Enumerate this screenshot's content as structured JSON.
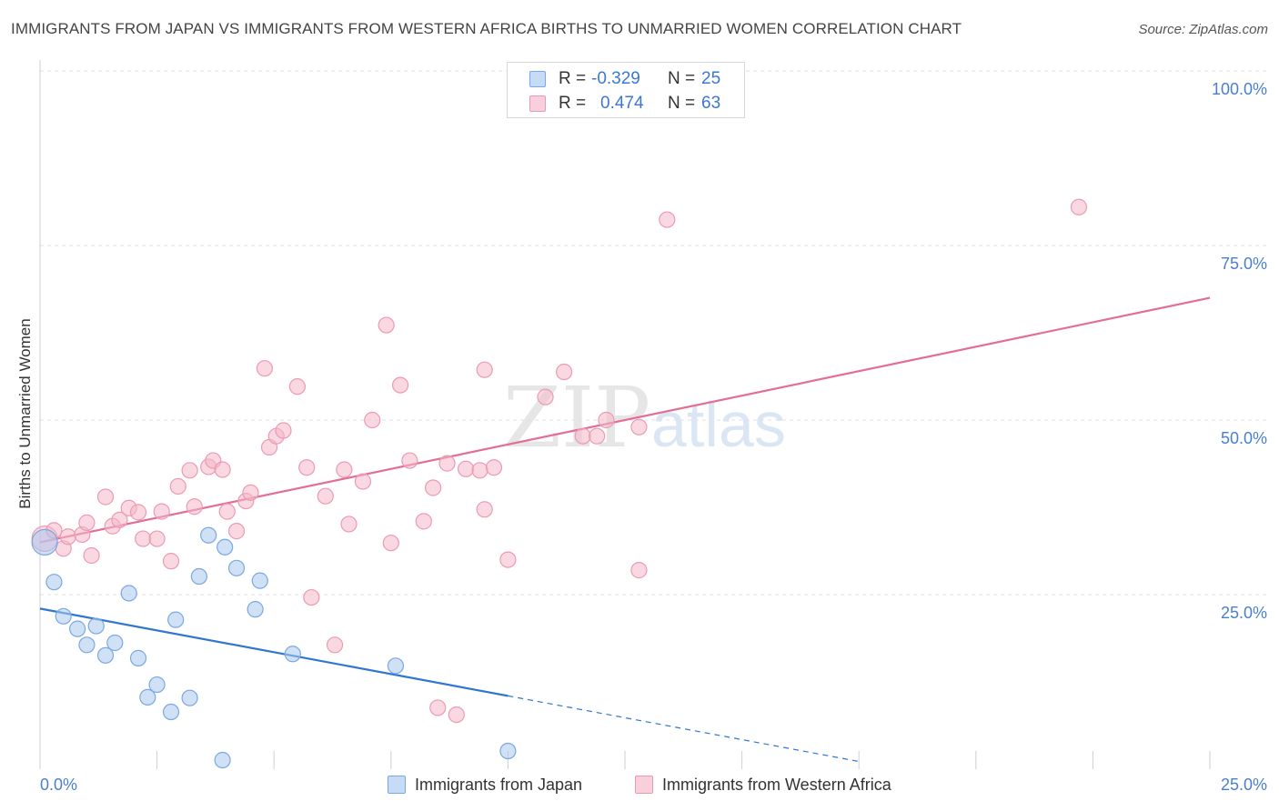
{
  "title": "IMMIGRANTS FROM JAPAN VS IMMIGRANTS FROM WESTERN AFRICA BIRTHS TO UNMARRIED WOMEN CORRELATION CHART",
  "source": "Source: ZipAtlas.com",
  "watermark": {
    "zip": "ZIP",
    "atlas": "atlas"
  },
  "stats": [
    {
      "r_label": "R =",
      "r_value": "-0.329",
      "n_label": "N =",
      "n_value": "25",
      "color": "#a9c8ef"
    },
    {
      "r_label": "R =",
      "r_value": "0.474",
      "n_label": "N =",
      "n_value": "63",
      "color": "#f5b8c9"
    }
  ],
  "chart_data": {
    "type": "scatter",
    "title": "IMMIGRANTS FROM JAPAN VS IMMIGRANTS FROM WESTERN AFRICA BIRTHS TO UNMARRIED WOMEN CORRELATION CHART",
    "xlabel": "",
    "ylabel": "Births to Unmarried Women",
    "xlim": [
      0,
      25
    ],
    "ylim": [
      0,
      100
    ],
    "x_tick_labels": [
      "0.0%",
      "25.0%"
    ],
    "y_ticks": [
      25,
      50,
      75,
      100
    ],
    "y_tick_labels": [
      "25.0%",
      "50.0%",
      "75.0%",
      "100.0%"
    ],
    "grid": true,
    "legend_position": "bottom",
    "series": [
      {
        "name": "Immigrants from Japan",
        "color": "#a9c8ef",
        "stroke": "#7aa8e0",
        "line_color": "#2f76d2",
        "trend": {
          "x0": 0,
          "y0": 23.0,
          "x1": 10.0,
          "y1": 10.5,
          "dash_to_x": 17.5,
          "dash_to_y": 1.1
        },
        "points": [
          {
            "x": 0.1,
            "y": 32.5,
            "big": true
          },
          {
            "x": 0.3,
            "y": 26.8
          },
          {
            "x": 0.5,
            "y": 21.9
          },
          {
            "x": 0.8,
            "y": 20.1
          },
          {
            "x": 1.0,
            "y": 17.8
          },
          {
            "x": 1.2,
            "y": 20.5
          },
          {
            "x": 1.4,
            "y": 16.3
          },
          {
            "x": 1.6,
            "y": 18.1
          },
          {
            "x": 1.9,
            "y": 25.2
          },
          {
            "x": 2.1,
            "y": 15.9
          },
          {
            "x": 2.3,
            "y": 10.3
          },
          {
            "x": 2.5,
            "y": 12.1
          },
          {
            "x": 2.8,
            "y": 8.2
          },
          {
            "x": 2.9,
            "y": 21.4
          },
          {
            "x": 3.2,
            "y": 10.2
          },
          {
            "x": 3.4,
            "y": 27.6
          },
          {
            "x": 3.6,
            "y": 33.5
          },
          {
            "x": 3.9,
            "y": 1.3
          },
          {
            "x": 3.95,
            "y": 31.8
          },
          {
            "x": 4.2,
            "y": 28.8
          },
          {
            "x": 4.6,
            "y": 22.9
          },
          {
            "x": 4.7,
            "y": 27.0
          },
          {
            "x": 5.4,
            "y": 16.5
          },
          {
            "x": 7.6,
            "y": 14.8
          },
          {
            "x": 10.0,
            "y": 2.6
          }
        ]
      },
      {
        "name": "Immigrants from Western Africa",
        "color": "#f5b8c9",
        "stroke": "#ec9ab3",
        "line_color": "#e46d96",
        "trend": {
          "x0": 0,
          "y0": 32.5,
          "x1": 25,
          "y1": 67.5
        },
        "points": [
          {
            "x": 0.1,
            "y": 33.0,
            "big": true
          },
          {
            "x": 0.3,
            "y": 34.2
          },
          {
            "x": 0.5,
            "y": 31.6
          },
          {
            "x": 0.6,
            "y": 33.3
          },
          {
            "x": 0.9,
            "y": 33.6
          },
          {
            "x": 1.0,
            "y": 35.3
          },
          {
            "x": 1.1,
            "y": 30.6
          },
          {
            "x": 1.4,
            "y": 39.0
          },
          {
            "x": 1.55,
            "y": 34.8
          },
          {
            "x": 1.7,
            "y": 35.7
          },
          {
            "x": 1.9,
            "y": 37.4
          },
          {
            "x": 2.1,
            "y": 36.8
          },
          {
            "x": 2.2,
            "y": 33.0
          },
          {
            "x": 2.5,
            "y": 33.0
          },
          {
            "x": 2.6,
            "y": 36.9
          },
          {
            "x": 2.8,
            "y": 29.8
          },
          {
            "x": 2.95,
            "y": 40.5
          },
          {
            "x": 3.2,
            "y": 42.8
          },
          {
            "x": 3.3,
            "y": 37.6
          },
          {
            "x": 3.6,
            "y": 43.3
          },
          {
            "x": 3.7,
            "y": 44.2
          },
          {
            "x": 3.9,
            "y": 42.9
          },
          {
            "x": 4.0,
            "y": 36.9
          },
          {
            "x": 4.2,
            "y": 34.1
          },
          {
            "x": 4.4,
            "y": 38.4
          },
          {
            "x": 4.5,
            "y": 39.6
          },
          {
            "x": 4.8,
            "y": 57.4
          },
          {
            "x": 4.9,
            "y": 46.1
          },
          {
            "x": 5.05,
            "y": 47.7
          },
          {
            "x": 5.2,
            "y": 48.5
          },
          {
            "x": 5.5,
            "y": 54.8
          },
          {
            "x": 5.7,
            "y": 43.2
          },
          {
            "x": 5.8,
            "y": 24.6
          },
          {
            "x": 6.1,
            "y": 39.1
          },
          {
            "x": 6.3,
            "y": 17.8
          },
          {
            "x": 6.5,
            "y": 42.9
          },
          {
            "x": 6.6,
            "y": 35.1
          },
          {
            "x": 6.9,
            "y": 41.2
          },
          {
            "x": 7.1,
            "y": 50.0
          },
          {
            "x": 7.4,
            "y": 63.6
          },
          {
            "x": 7.5,
            "y": 32.4
          },
          {
            "x": 7.7,
            "y": 55.0
          },
          {
            "x": 7.9,
            "y": 44.2
          },
          {
            "x": 8.2,
            "y": 35.5
          },
          {
            "x": 8.4,
            "y": 40.3
          },
          {
            "x": 8.5,
            "y": 8.8
          },
          {
            "x": 8.7,
            "y": 43.8
          },
          {
            "x": 8.9,
            "y": 7.8
          },
          {
            "x": 9.1,
            "y": 43.0
          },
          {
            "x": 9.4,
            "y": 42.8
          },
          {
            "x": 9.5,
            "y": 37.2
          },
          {
            "x": 9.7,
            "y": 43.2
          },
          {
            "x": 9.5,
            "y": 57.2
          },
          {
            "x": 10.0,
            "y": 30.0
          },
          {
            "x": 10.8,
            "y": 53.3
          },
          {
            "x": 11.2,
            "y": 56.9
          },
          {
            "x": 11.6,
            "y": 47.7
          },
          {
            "x": 11.9,
            "y": 47.7
          },
          {
            "x": 12.1,
            "y": 50.0
          },
          {
            "x": 12.8,
            "y": 49.0
          },
          {
            "x": 12.8,
            "y": 28.5
          },
          {
            "x": 13.4,
            "y": 78.7
          },
          {
            "x": 22.2,
            "y": 80.5
          }
        ]
      }
    ]
  }
}
